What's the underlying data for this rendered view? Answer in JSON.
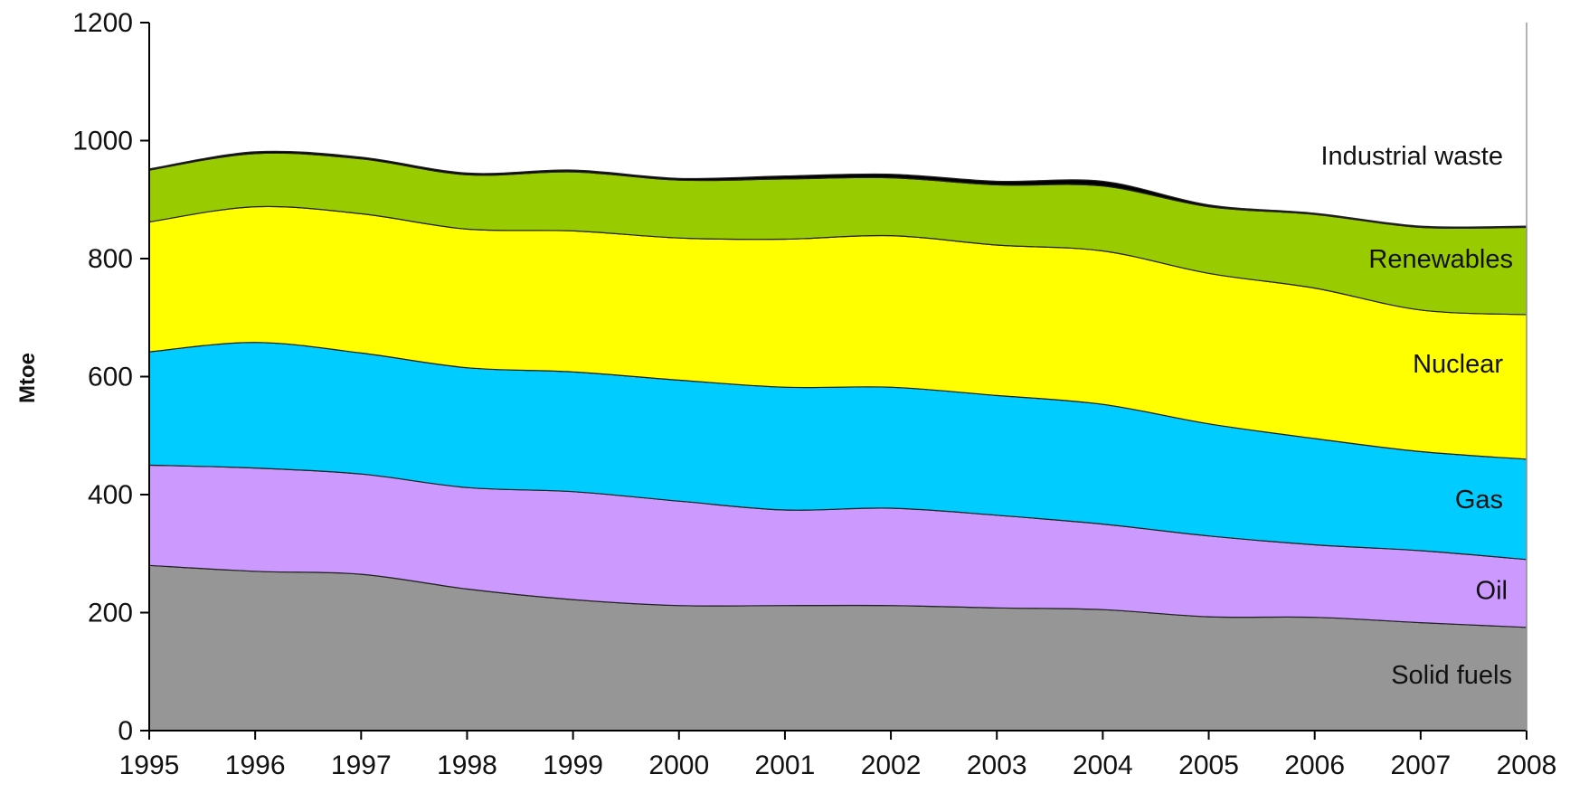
{
  "chart_data": {
    "type": "area",
    "stacked": true,
    "title": "",
    "xlabel": "",
    "ylabel": "Mtoe",
    "x": [
      1995,
      1996,
      1997,
      1998,
      1999,
      2000,
      2001,
      2002,
      2003,
      2004,
      2005,
      2006,
      2007,
      2008
    ],
    "ylim": [
      0,
      1200
    ],
    "yticks": [
      0,
      200,
      400,
      600,
      800,
      1000,
      1200
    ],
    "grid": false,
    "legend": "inline-labels-right",
    "series": [
      {
        "name": "Solid fuels",
        "color": "#969696",
        "values": [
          280,
          270,
          265,
          240,
          222,
          212,
          212,
          212,
          208,
          205,
          193,
          192,
          183,
          175
        ]
      },
      {
        "name": "Oil",
        "color": "#cc99ff",
        "values": [
          170,
          175,
          170,
          172,
          183,
          177,
          162,
          165,
          157,
          145,
          137,
          123,
          122,
          115
        ]
      },
      {
        "name": "Gas",
        "color": "#00ccff",
        "values": [
          192,
          213,
          205,
          203,
          203,
          205,
          208,
          205,
          203,
          203,
          190,
          180,
          168,
          170
        ]
      },
      {
        "name": "Nuclear",
        "color": "#ffff00",
        "values": [
          220,
          230,
          236,
          235,
          239,
          241,
          251,
          257,
          255,
          260,
          255,
          255,
          240,
          245
        ]
      },
      {
        "name": "Renewables",
        "color": "#99cc00",
        "values": [
          88,
          90,
          93,
          92,
          100,
          98,
          102,
          98,
          102,
          110,
          113,
          125,
          140,
          148
        ]
      },
      {
        "name": "Industrial waste",
        "color": "#000000",
        "values": [
          2,
          3,
          3,
          3,
          3,
          3,
          5,
          6,
          6,
          8,
          3,
          2,
          2,
          2
        ]
      }
    ]
  }
}
